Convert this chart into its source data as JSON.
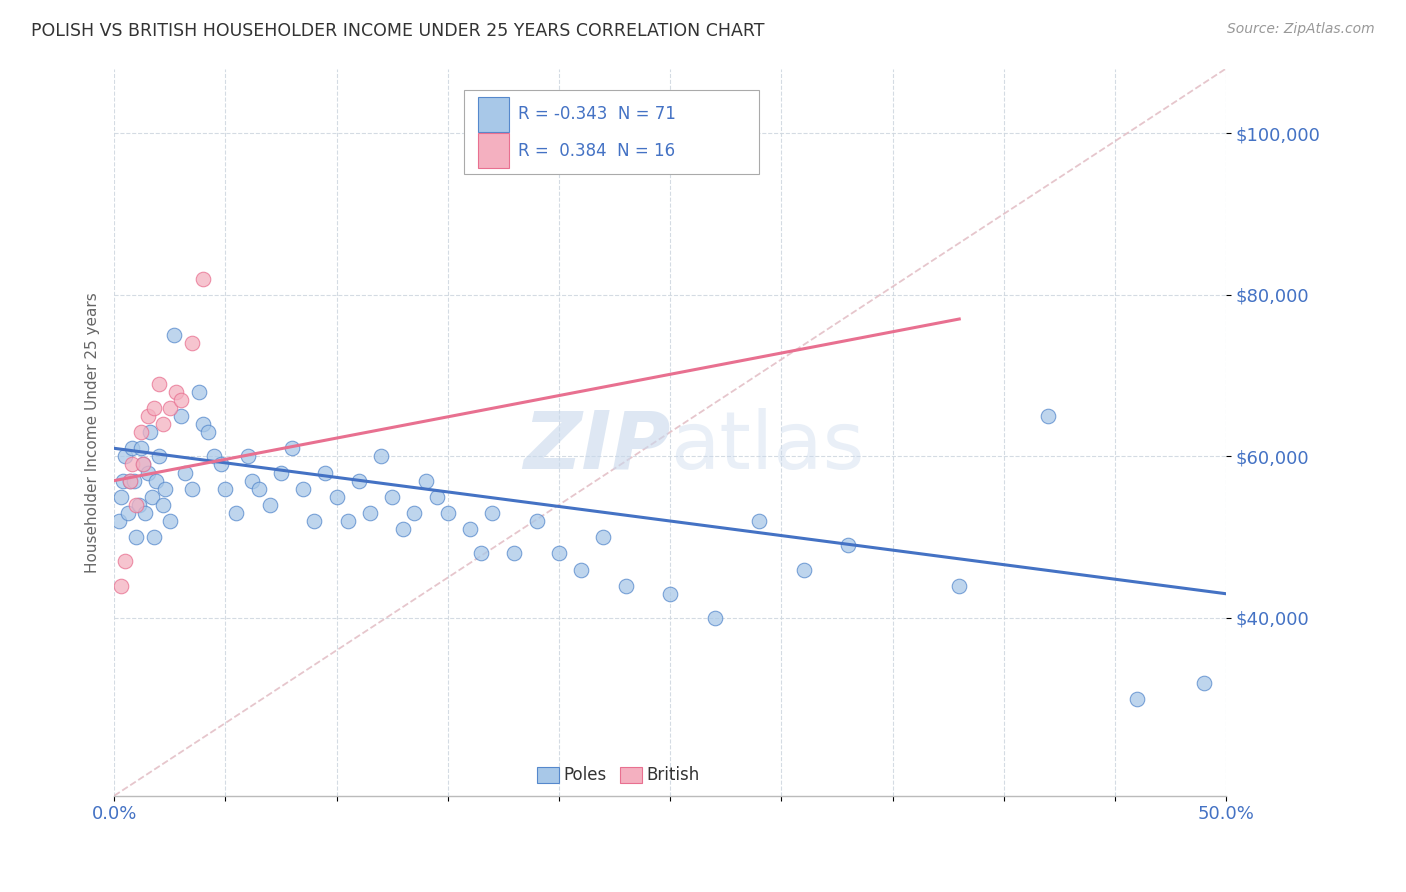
{
  "title": "POLISH VS BRITISH HOUSEHOLDER INCOME UNDER 25 YEARS CORRELATION CHART",
  "source": "Source: ZipAtlas.com",
  "ylabel": "Householder Income Under 25 years",
  "xlim": [
    0.0,
    0.5
  ],
  "ylim": [
    18000,
    108000
  ],
  "ytick_labels": [
    "$40,000",
    "$60,000",
    "$80,000",
    "$100,000"
  ],
  "ytick_values": [
    40000,
    60000,
    80000,
    100000
  ],
  "poles_color": "#a8c8e8",
  "british_color": "#f4b0c0",
  "poles_edge_color": "#5588cc",
  "british_edge_color": "#e87090",
  "poles_line_color": "#4472c4",
  "british_line_color": "#e87090",
  "diag_color": "#e0b8c0",
  "grid_color": "#d0d8e0",
  "legend_r_poles": "-0.343",
  "legend_n_poles": "71",
  "legend_r_british": "0.384",
  "legend_n_british": "16",
  "watermark_color": "#c8d8ec",
  "poles_x": [
    0.002,
    0.003,
    0.004,
    0.005,
    0.006,
    0.007,
    0.008,
    0.009,
    0.01,
    0.011,
    0.012,
    0.013,
    0.014,
    0.015,
    0.016,
    0.017,
    0.018,
    0.019,
    0.02,
    0.022,
    0.023,
    0.025,
    0.027,
    0.03,
    0.032,
    0.035,
    0.038,
    0.04,
    0.042,
    0.045,
    0.048,
    0.05,
    0.055,
    0.06,
    0.062,
    0.065,
    0.07,
    0.075,
    0.08,
    0.085,
    0.09,
    0.095,
    0.1,
    0.105,
    0.11,
    0.115,
    0.12,
    0.125,
    0.13,
    0.135,
    0.14,
    0.145,
    0.15,
    0.16,
    0.165,
    0.17,
    0.18,
    0.19,
    0.2,
    0.21,
    0.22,
    0.23,
    0.25,
    0.27,
    0.29,
    0.31,
    0.33,
    0.38,
    0.42,
    0.46,
    0.49
  ],
  "poles_y": [
    52000,
    55000,
    57000,
    60000,
    53000,
    57000,
    61000,
    57000,
    50000,
    54000,
    61000,
    59000,
    53000,
    58000,
    63000,
    55000,
    50000,
    57000,
    60000,
    54000,
    56000,
    52000,
    75000,
    65000,
    58000,
    56000,
    68000,
    64000,
    63000,
    60000,
    59000,
    56000,
    53000,
    60000,
    57000,
    56000,
    54000,
    58000,
    61000,
    56000,
    52000,
    58000,
    55000,
    52000,
    57000,
    53000,
    60000,
    55000,
    51000,
    53000,
    57000,
    55000,
    53000,
    51000,
    48000,
    53000,
    48000,
    52000,
    48000,
    46000,
    50000,
    44000,
    43000,
    40000,
    52000,
    46000,
    49000,
    44000,
    65000,
    30000,
    32000
  ],
  "british_x": [
    0.003,
    0.005,
    0.007,
    0.008,
    0.01,
    0.012,
    0.013,
    0.015,
    0.018,
    0.02,
    0.022,
    0.025,
    0.028,
    0.03,
    0.035,
    0.04
  ],
  "british_y": [
    44000,
    47000,
    57000,
    59000,
    54000,
    63000,
    59000,
    65000,
    66000,
    69000,
    64000,
    66000,
    68000,
    67000,
    74000,
    82000
  ],
  "poles_trend": [
    0.0,
    61000,
    0.5,
    43000
  ],
  "british_trend": [
    0.0,
    57000,
    0.38,
    77000
  ],
  "diag_line": [
    0.0,
    18000,
    0.5,
    108000
  ],
  "background_color": "#ffffff"
}
